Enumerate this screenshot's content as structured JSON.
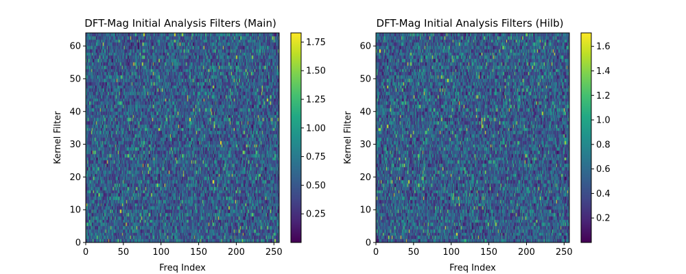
{
  "chart_data": [
    {
      "type": "heatmap",
      "title": "DFT-Mag Initial Analysis Filters (Main)",
      "xlabel": "Freq Index",
      "ylabel": "Kernel Filter",
      "x_ticks": [
        0,
        50,
        100,
        150,
        200,
        250
      ],
      "y_ticks": [
        0,
        10,
        20,
        30,
        40,
        50,
        60
      ],
      "xlim": [
        0,
        257
      ],
      "ylim": [
        0,
        64
      ],
      "n_cols": 257,
      "n_rows": 64,
      "colormap": "viridis",
      "colorbar": {
        "min": 0.0,
        "max": 1.83,
        "ticks": [
          0.25,
          0.5,
          0.75,
          1.0,
          1.25,
          1.5,
          1.75
        ],
        "tick_labels": [
          "0.25",
          "0.50",
          "0.75",
          "1.00",
          "1.25",
          "1.50",
          "1.75"
        ]
      }
    },
    {
      "type": "heatmap",
      "title": "DFT-Mag Initial Analysis Filters (Hilb)",
      "xlabel": "Freq Index",
      "ylabel": "Kernel Filter",
      "x_ticks": [
        0,
        50,
        100,
        150,
        200,
        250
      ],
      "y_ticks": [
        0,
        10,
        20,
        30,
        40,
        50,
        60
      ],
      "xlim": [
        0,
        257
      ],
      "ylim": [
        0,
        64
      ],
      "n_cols": 257,
      "n_rows": 64,
      "colormap": "viridis",
      "colorbar": {
        "min": 0.0,
        "max": 1.71,
        "ticks": [
          0.2,
          0.4,
          0.6,
          0.8,
          1.0,
          1.2,
          1.4,
          1.6
        ],
        "tick_labels": [
          "0.2",
          "0.4",
          "0.6",
          "0.8",
          "1.0",
          "1.2",
          "1.4",
          "1.6"
        ]
      }
    }
  ]
}
